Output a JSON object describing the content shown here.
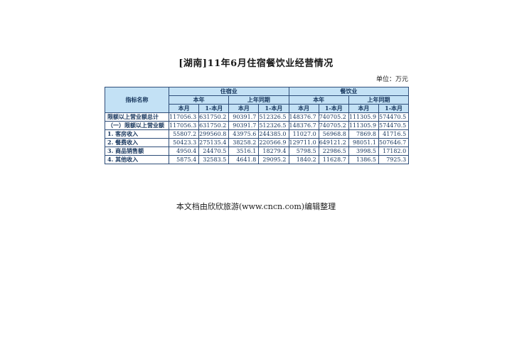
{
  "page": {
    "title": "[湖南]11年6月住宿餐饮业经营情况",
    "unit_label": "单位：万元",
    "footer": "本文档由欣欣旅游(www.cncn.com)编辑整理"
  },
  "table": {
    "header": {
      "indicator_col": "指标名称",
      "groups": [
        {
          "label": "住宿业",
          "subgroups": [
            {
              "label": "本年",
              "cols": [
                "本月",
                "1-本月"
              ]
            },
            {
              "label": "上年同期",
              "cols": [
                "本月",
                "1-本月"
              ]
            }
          ]
        },
        {
          "label": "餐饮业",
          "subgroups": [
            {
              "label": "本年",
              "cols": [
                "本月",
                "1-本月"
              ]
            },
            {
              "label": "上年同期",
              "cols": [
                "本月",
                "1-本月"
              ]
            }
          ]
        }
      ]
    },
    "rows": [
      {
        "label": "限额以上营业额总计",
        "values": [
          "117056.3",
          "631750.2",
          "90391.7",
          "512326.5",
          "148376.7",
          "740705.2",
          "111305.9",
          "574470.5"
        ]
      },
      {
        "label": "（一）限额以上营业额",
        "values": [
          "117056.3",
          "631750.2",
          "90391.7",
          "512326.5",
          "148376.7",
          "740705.2",
          "111305.9",
          "574470.5"
        ]
      },
      {
        "label": "1. 客房收入",
        "values": [
          "55807.2",
          "299560.8",
          "43975.6",
          "244385.0",
          "11027.0",
          "56968.8",
          "7869.8",
          "41716.5"
        ]
      },
      {
        "label": "2. 餐费收入",
        "values": [
          "50423.3",
          "275135.4",
          "38258.2",
          "220566.9",
          "129711.0",
          "649121.2",
          "98051.1",
          "507646.7"
        ]
      },
      {
        "label": "3. 商品销售额",
        "values": [
          "4950.4",
          "24470.5",
          "3516.1",
          "18279.4",
          "5798.5",
          "22986.5",
          "3998.5",
          "17182.0"
        ]
      },
      {
        "label": "4. 其他收入",
        "values": [
          "5875.4",
          "32583.5",
          "4641.8",
          "29095.2",
          "1840.2",
          "11628.7",
          "1386.5",
          "7925.3"
        ]
      }
    ]
  },
  "colors": {
    "border": "#2e4d79",
    "header_bg": "#c3e1f5",
    "header_text": "#17365d",
    "data_text": "#17365d"
  }
}
